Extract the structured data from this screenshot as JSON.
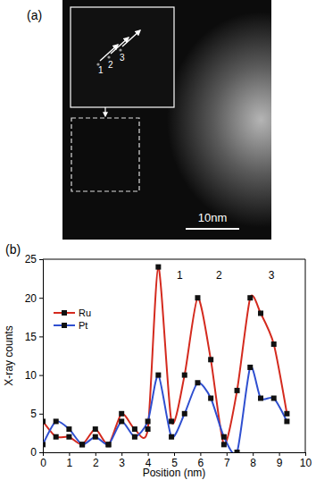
{
  "panel_a": {
    "label": "(a)",
    "scale_bar": "10nm",
    "inset_labels": [
      "1",
      "2",
      "3"
    ]
  },
  "chart_data": {
    "type": "line",
    "title": "(b)",
    "x_label": "Position (nm)",
    "y_label": "X-ray counts",
    "x": [
      0,
      0.5,
      1,
      1.5,
      2,
      2.5,
      3,
      3.5,
      4,
      4.4,
      4.9,
      5.4,
      5.9,
      6.4,
      6.9,
      7.4,
      7.9,
      8.3,
      8.8,
      9.3
    ],
    "series": [
      {
        "name": "Ru",
        "color": "#d42a1e",
        "marker": "square",
        "values": [
          4,
          2,
          2,
          1,
          3,
          1,
          5,
          3,
          3,
          24,
          4,
          10,
          20,
          12,
          1,
          8,
          20,
          18,
          14,
          5
        ]
      },
      {
        "name": "Pt",
        "color": "#2f4fd0",
        "marker": "square",
        "values": [
          1,
          4,
          3,
          1,
          2,
          1,
          4,
          2,
          4,
          10,
          2,
          5,
          9,
          7,
          2,
          0,
          11,
          7,
          7,
          4
        ]
      }
    ],
    "annotations": [
      {
        "text": "1",
        "x": 5.1,
        "y": 22.5
      },
      {
        "text": "2",
        "x": 6.6,
        "y": 22.5
      },
      {
        "text": "3",
        "x": 8.6,
        "y": 22.5
      }
    ],
    "xlim": [
      0,
      10
    ],
    "xticks": [
      0,
      1,
      2,
      3,
      4,
      5,
      6,
      7,
      8,
      9,
      10
    ],
    "ylim": [
      0,
      25
    ],
    "yticks": [
      0,
      5,
      10,
      15,
      20,
      25
    ],
    "grid": false,
    "legend": "upper left",
    "line_style": "solid"
  }
}
